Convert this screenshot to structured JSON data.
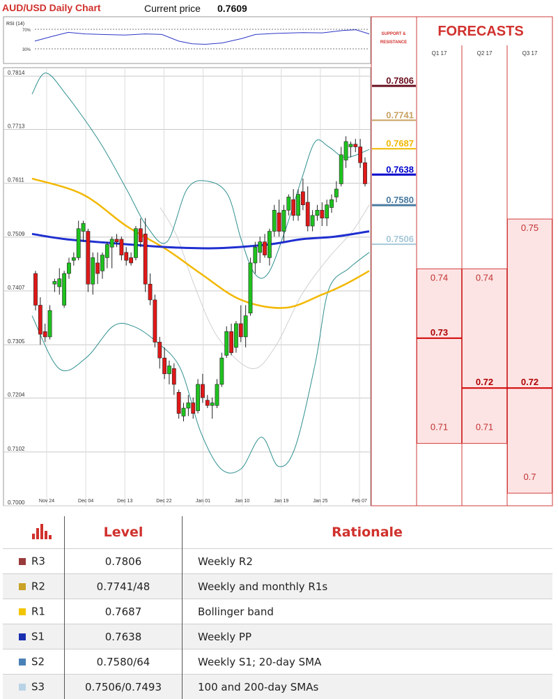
{
  "header": {
    "chart_title": "AUD/USD Daily Chart",
    "price_label": "Current price",
    "price_value": "0.7609",
    "rsi_label": "RSI (14)",
    "rsi_levels": [
      "70%",
      "30%"
    ]
  },
  "chart_data": {
    "type": "candlestick",
    "ylim": [
      0.7,
      0.783
    ],
    "y_ticks": [
      "0.7814",
      "0.7713",
      "0.7611",
      "0.7509",
      "0.7407",
      "0.7305",
      "0.7204",
      "0.7102",
      "0.7000"
    ],
    "x_ticks": [
      "Nov 24",
      "Dec 04",
      "Dec 13",
      "Dec 22",
      "Jan 01",
      "Jan 10",
      "Jan 19",
      "Jan 25",
      "Feb 07"
    ],
    "candles": [
      {
        "o": 0.744,
        "h": 0.7445,
        "l": 0.737,
        "c": 0.738
      },
      {
        "o": 0.738,
        "h": 0.7395,
        "l": 0.7305,
        "c": 0.7325
      },
      {
        "o": 0.733,
        "h": 0.7345,
        "l": 0.731,
        "c": 0.732
      },
      {
        "o": 0.732,
        "h": 0.738,
        "l": 0.7315,
        "c": 0.737
      },
      {
        "o": 0.742,
        "h": 0.743,
        "l": 0.7405,
        "c": 0.7425
      },
      {
        "o": 0.7415,
        "h": 0.745,
        "l": 0.74,
        "c": 0.743
      },
      {
        "o": 0.738,
        "h": 0.7445,
        "l": 0.7375,
        "c": 0.744
      },
      {
        "o": 0.744,
        "h": 0.747,
        "l": 0.743,
        "c": 0.746
      },
      {
        "o": 0.7465,
        "h": 0.748,
        "l": 0.7455,
        "c": 0.747
      },
      {
        "o": 0.747,
        "h": 0.754,
        "l": 0.7465,
        "c": 0.7525
      },
      {
        "o": 0.752,
        "h": 0.754,
        "l": 0.75,
        "c": 0.7535
      },
      {
        "o": 0.752,
        "h": 0.7525,
        "l": 0.7405,
        "c": 0.742
      },
      {
        "o": 0.742,
        "h": 0.748,
        "l": 0.74,
        "c": 0.747
      },
      {
        "o": 0.746,
        "h": 0.748,
        "l": 0.742,
        "c": 0.744
      },
      {
        "o": 0.7445,
        "h": 0.748,
        "l": 0.743,
        "c": 0.7475
      },
      {
        "o": 0.747,
        "h": 0.75,
        "l": 0.745,
        "c": 0.7495
      },
      {
        "o": 0.749,
        "h": 0.751,
        "l": 0.745,
        "c": 0.7505
      },
      {
        "o": 0.7505,
        "h": 0.7515,
        "l": 0.749,
        "c": 0.75
      },
      {
        "o": 0.7505,
        "h": 0.751,
        "l": 0.7465,
        "c": 0.7475
      },
      {
        "o": 0.748,
        "h": 0.749,
        "l": 0.7455,
        "c": 0.7465
      },
      {
        "o": 0.747,
        "h": 0.748,
        "l": 0.7455,
        "c": 0.746
      },
      {
        "o": 0.747,
        "h": 0.753,
        "l": 0.7465,
        "c": 0.7525
      },
      {
        "o": 0.7525,
        "h": 0.7545,
        "l": 0.749,
        "c": 0.75
      },
      {
        "o": 0.7515,
        "h": 0.7545,
        "l": 0.7405,
        "c": 0.742
      },
      {
        "o": 0.742,
        "h": 0.744,
        "l": 0.738,
        "c": 0.739
      },
      {
        "o": 0.739,
        "h": 0.74,
        "l": 0.73,
        "c": 0.731
      },
      {
        "o": 0.731,
        "h": 0.732,
        "l": 0.726,
        "c": 0.728
      },
      {
        "o": 0.728,
        "h": 0.73,
        "l": 0.724,
        "c": 0.725
      },
      {
        "o": 0.725,
        "h": 0.7275,
        "l": 0.723,
        "c": 0.7265
      },
      {
        "o": 0.726,
        "h": 0.727,
        "l": 0.721,
        "c": 0.723
      },
      {
        "o": 0.7215,
        "h": 0.722,
        "l": 0.7165,
        "c": 0.7175
      },
      {
        "o": 0.717,
        "h": 0.7195,
        "l": 0.716,
        "c": 0.7185
      },
      {
        "o": 0.7185,
        "h": 0.721,
        "l": 0.717,
        "c": 0.7195
      },
      {
        "o": 0.7195,
        "h": 0.7205,
        "l": 0.7165,
        "c": 0.7175
      },
      {
        "o": 0.718,
        "h": 0.724,
        "l": 0.7175,
        "c": 0.723
      },
      {
        "o": 0.723,
        "h": 0.725,
        "l": 0.7195,
        "c": 0.7205
      },
      {
        "o": 0.72,
        "h": 0.721,
        "l": 0.7185,
        "c": 0.719
      },
      {
        "o": 0.719,
        "h": 0.7205,
        "l": 0.7165,
        "c": 0.7195
      },
      {
        "o": 0.719,
        "h": 0.724,
        "l": 0.7185,
        "c": 0.723
      },
      {
        "o": 0.723,
        "h": 0.729,
        "l": 0.7225,
        "c": 0.728
      },
      {
        "o": 0.7285,
        "h": 0.734,
        "l": 0.728,
        "c": 0.733
      },
      {
        "o": 0.733,
        "h": 0.7345,
        "l": 0.7285,
        "c": 0.729
      },
      {
        "o": 0.73,
        "h": 0.735,
        "l": 0.729,
        "c": 0.7345
      },
      {
        "o": 0.7345,
        "h": 0.738,
        "l": 0.731,
        "c": 0.732
      },
      {
        "o": 0.732,
        "h": 0.738,
        "l": 0.73,
        "c": 0.736
      },
      {
        "o": 0.7365,
        "h": 0.747,
        "l": 0.736,
        "c": 0.746
      },
      {
        "o": 0.746,
        "h": 0.75,
        "l": 0.744,
        "c": 0.749
      },
      {
        "o": 0.748,
        "h": 0.751,
        "l": 0.746,
        "c": 0.75
      },
      {
        "o": 0.75,
        "h": 0.7515,
        "l": 0.747,
        "c": 0.7475
      },
      {
        "o": 0.747,
        "h": 0.7525,
        "l": 0.7455,
        "c": 0.752
      },
      {
        "o": 0.752,
        "h": 0.757,
        "l": 0.751,
        "c": 0.756
      },
      {
        "o": 0.7555,
        "h": 0.758,
        "l": 0.751,
        "c": 0.752
      },
      {
        "o": 0.752,
        "h": 0.757,
        "l": 0.75,
        "c": 0.756
      },
      {
        "o": 0.756,
        "h": 0.759,
        "l": 0.755,
        "c": 0.7585
      },
      {
        "o": 0.758,
        "h": 0.76,
        "l": 0.754,
        "c": 0.755
      },
      {
        "o": 0.755,
        "h": 0.76,
        "l": 0.754,
        "c": 0.759
      },
      {
        "o": 0.7595,
        "h": 0.762,
        "l": 0.756,
        "c": 0.757
      },
      {
        "o": 0.7575,
        "h": 0.7605,
        "l": 0.752,
        "c": 0.753
      },
      {
        "o": 0.753,
        "h": 0.756,
        "l": 0.752,
        "c": 0.755
      },
      {
        "o": 0.755,
        "h": 0.757,
        "l": 0.754,
        "c": 0.756
      },
      {
        "o": 0.756,
        "h": 0.7575,
        "l": 0.753,
        "c": 0.7545
      },
      {
        "o": 0.7545,
        "h": 0.758,
        "l": 0.753,
        "c": 0.757
      },
      {
        "o": 0.7565,
        "h": 0.759,
        "l": 0.7555,
        "c": 0.758
      },
      {
        "o": 0.7585,
        "h": 0.7615,
        "l": 0.7575,
        "c": 0.76
      },
      {
        "o": 0.761,
        "h": 0.768,
        "l": 0.7605,
        "c": 0.7665
      },
      {
        "o": 0.7655,
        "h": 0.77,
        "l": 0.764,
        "c": 0.769
      },
      {
        "o": 0.768,
        "h": 0.769,
        "l": 0.766,
        "c": 0.7685
      },
      {
        "o": 0.7685,
        "h": 0.7695,
        "l": 0.767,
        "c": 0.768
      },
      {
        "o": 0.768,
        "h": 0.7695,
        "l": 0.764,
        "c": 0.765
      },
      {
        "o": 0.765,
        "h": 0.766,
        "l": 0.7605,
        "c": 0.761
      }
    ],
    "sma_yellow": [
      [
        0,
        0.762
      ],
      [
        0.15,
        0.759
      ],
      [
        0.28,
        0.753
      ],
      [
        0.4,
        0.7485
      ],
      [
        0.5,
        0.744
      ],
      [
        0.62,
        0.739
      ],
      [
        0.75,
        0.7375
      ],
      [
        0.86,
        0.74
      ],
      [
        0.93,
        0.742
      ],
      [
        1,
        0.7445
      ]
    ],
    "sma_blue": [
      [
        0,
        0.7515
      ],
      [
        0.1,
        0.7505
      ],
      [
        0.25,
        0.7497
      ],
      [
        0.4,
        0.749
      ],
      [
        0.55,
        0.7488
      ],
      [
        0.7,
        0.7495
      ],
      [
        0.8,
        0.7505
      ],
      [
        0.9,
        0.751
      ],
      [
        1,
        0.752
      ]
    ],
    "sma_gray": [
      [
        0.38,
        0.7565
      ],
      [
        0.43,
        0.751
      ],
      [
        0.48,
        0.742
      ],
      [
        0.55,
        0.732
      ],
      [
        0.65,
        0.726
      ],
      [
        0.72,
        0.73
      ],
      [
        0.8,
        0.74
      ],
      [
        0.88,
        0.747
      ],
      [
        0.95,
        0.752
      ],
      [
        1,
        0.757
      ]
    ],
    "boll_upper": [
      [
        0,
        0.778
      ],
      [
        0.04,
        0.782
      ],
      [
        0.1,
        0.778
      ],
      [
        0.2,
        0.769
      ],
      [
        0.28,
        0.76
      ],
      [
        0.34,
        0.753
      ],
      [
        0.4,
        0.75
      ],
      [
        0.46,
        0.76
      ],
      [
        0.52,
        0.7615
      ],
      [
        0.58,
        0.759
      ],
      [
        0.62,
        0.7505
      ],
      [
        0.66,
        0.744
      ],
      [
        0.7,
        0.744
      ],
      [
        0.75,
        0.752
      ],
      [
        0.8,
        0.762
      ],
      [
        0.84,
        0.769
      ],
      [
        0.88,
        0.768
      ],
      [
        0.93,
        0.766
      ],
      [
        1,
        0.7675
      ]
    ],
    "boll_lower": [
      [
        0,
        0.736
      ],
      [
        0.08,
        0.726
      ],
      [
        0.16,
        0.728
      ],
      [
        0.24,
        0.734
      ],
      [
        0.3,
        0.734
      ],
      [
        0.37,
        0.731
      ],
      [
        0.44,
        0.726
      ],
      [
        0.5,
        0.714
      ],
      [
        0.56,
        0.707
      ],
      [
        0.62,
        0.707
      ],
      [
        0.68,
        0.713
      ],
      [
        0.73,
        0.7075
      ],
      [
        0.78,
        0.711
      ],
      [
        0.84,
        0.727
      ],
      [
        0.88,
        0.741
      ],
      [
        0.94,
        0.745
      ],
      [
        1,
        0.748
      ]
    ],
    "rsi": [
      [
        0,
        0.45
      ],
      [
        0.05,
        0.62
      ],
      [
        0.1,
        0.78
      ],
      [
        0.15,
        0.72
      ],
      [
        0.2,
        0.7
      ],
      [
        0.27,
        0.68
      ],
      [
        0.33,
        0.72
      ],
      [
        0.38,
        0.7
      ],
      [
        0.43,
        0.45
      ],
      [
        0.47,
        0.35
      ],
      [
        0.51,
        0.33
      ],
      [
        0.56,
        0.38
      ],
      [
        0.62,
        0.55
      ],
      [
        0.66,
        0.7
      ],
      [
        0.72,
        0.74
      ],
      [
        0.8,
        0.77
      ],
      [
        0.86,
        0.76
      ],
      [
        0.92,
        0.85
      ],
      [
        0.96,
        0.88
      ],
      [
        1,
        0.72
      ]
    ]
  },
  "levels_panel": {
    "header": "SUPPORT & RESISTANCE",
    "levels": [
      {
        "label": "0.7806",
        "value": 0.7806,
        "color": "#6b1020",
        "thick": true
      },
      {
        "label": "0.7741",
        "value": 0.7741,
        "color": "#c8a060",
        "thick": false
      },
      {
        "label": "0.7687",
        "value": 0.7687,
        "color": "#f0b800",
        "thick": false
      },
      {
        "label": "0.7638",
        "value": 0.7638,
        "color": "#0000cc",
        "thick": true
      },
      {
        "label": "0.7580",
        "value": 0.758,
        "color": "#4a7ba0",
        "thick": true
      },
      {
        "label": "0.7506",
        "value": 0.7506,
        "color": "#a6c8d8",
        "thick": false
      }
    ]
  },
  "forecasts": {
    "title": "FORECASTS",
    "columns": [
      {
        "label": "Q1 17",
        "min": 0.71,
        "max": 0.74,
        "main": 0.73,
        "min_label": "0.71",
        "max_label": "0.74",
        "main_label": "0.73"
      },
      {
        "label": "Q2 17",
        "min": 0.71,
        "max": 0.74,
        "main": 0.72,
        "min_label": "0.71",
        "max_label": "0.74",
        "main_label": "0.72"
      },
      {
        "label": "Q3 17",
        "min": 0.7,
        "max": 0.75,
        "main": 0.72,
        "min_label": "0.7",
        "max_label": "0.75",
        "main_label": "0.72"
      }
    ]
  },
  "table": {
    "headers": {
      "level": "Level",
      "rationale": "Rationale"
    },
    "rows": [
      {
        "code": "R3",
        "level": "0.7806",
        "rationale": "Weekly R2",
        "color": "#9a3b3b"
      },
      {
        "code": "R2",
        "level": "0.7741/48",
        "rationale": "Weekly and monthly R1s",
        "color": "#c9a227"
      },
      {
        "code": "R1",
        "level": "0.7687",
        "rationale": "Bollinger band",
        "color": "#f2c500"
      },
      {
        "code": "S1",
        "level": "0.7638",
        "rationale": "Weekly PP",
        "color": "#1a2fb0"
      },
      {
        "code": "S2",
        "level": "0.7580/64",
        "rationale": "Weekly S1; 20-day SMA",
        "color": "#4a80b8"
      },
      {
        "code": "S3",
        "level": "0.7506/0.7493",
        "rationale": "100 and 200-day SMAs",
        "color": "#b9d3e6"
      }
    ]
  }
}
